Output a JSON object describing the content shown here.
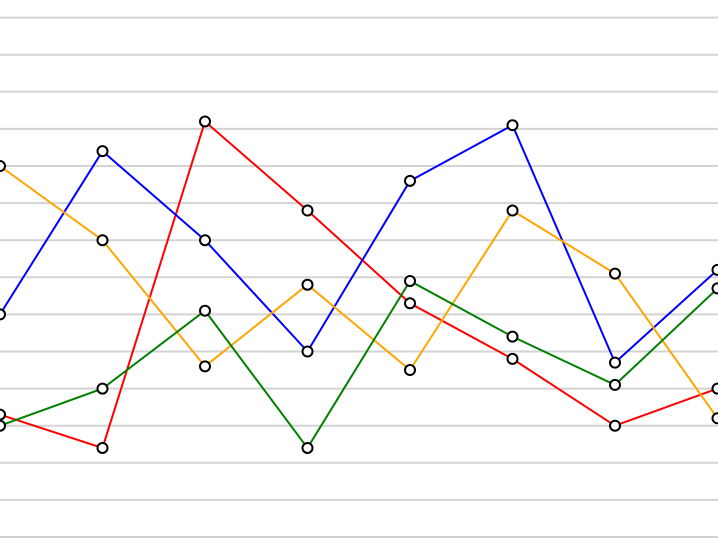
{
  "chart_data": {
    "type": "line",
    "x": [
      0,
      1,
      2,
      3,
      4,
      5,
      6,
      7
    ],
    "ylim": [
      0,
      14.5
    ],
    "grid": true,
    "legend": "none",
    "gridline_values": [
      0,
      1,
      2,
      3,
      4,
      5,
      6,
      7,
      8,
      9,
      10,
      11,
      12,
      13,
      14
    ],
    "series": [
      {
        "color": "#ff0000",
        "values": [
          3.3,
          2.4,
          11.2,
          8.8,
          6.3,
          4.8,
          3.0,
          4.0
        ]
      },
      {
        "color": "#0000ff",
        "values": [
          6.0,
          10.4,
          8.0,
          5.0,
          9.6,
          11.1,
          4.7,
          7.2
        ]
      },
      {
        "color": "#ffa500",
        "values": [
          10.0,
          8.0,
          4.6,
          6.8,
          4.5,
          8.8,
          7.1,
          3.2
        ]
      },
      {
        "color": "#008000",
        "values": [
          3.0,
          4.0,
          6.1,
          2.4,
          6.9,
          5.4,
          4.1,
          6.7
        ]
      }
    ]
  }
}
